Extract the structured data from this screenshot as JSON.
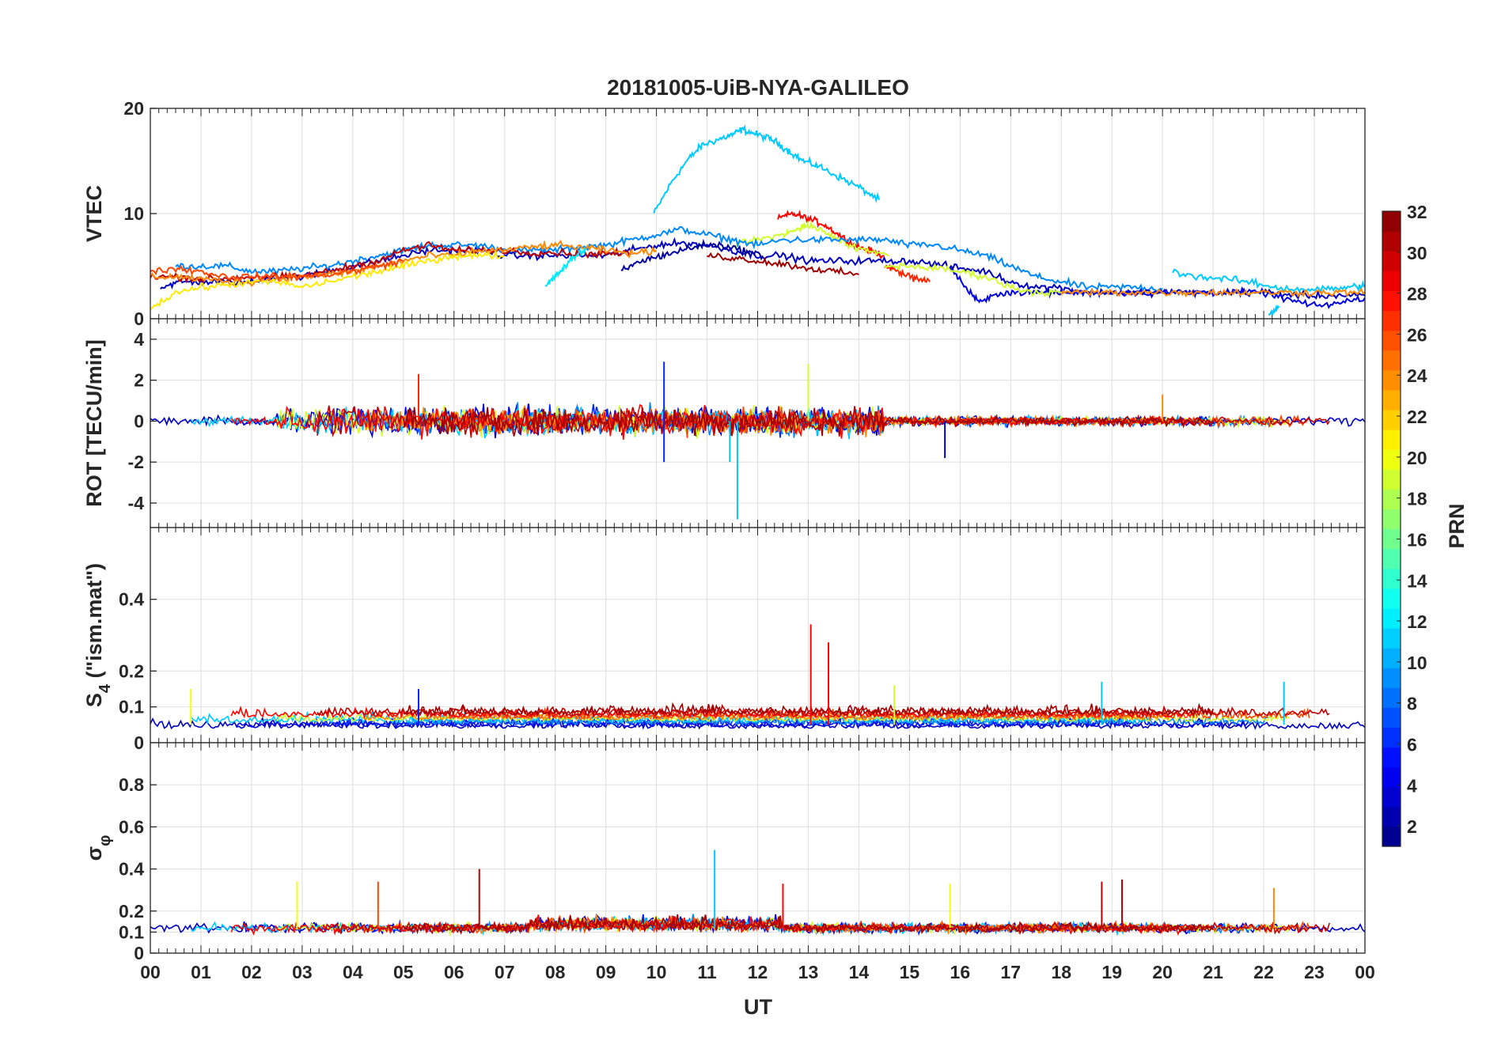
{
  "chart_data": {
    "type": "line",
    "title": "20181005-UiB-NYA-GALILEO",
    "xlabel": "UT",
    "x_range": [
      0,
      24
    ],
    "x_tick_labels": [
      "00",
      "01",
      "02",
      "03",
      "04",
      "05",
      "06",
      "07",
      "08",
      "09",
      "10",
      "11",
      "12",
      "13",
      "14",
      "15",
      "16",
      "17",
      "18",
      "19",
      "20",
      "21",
      "22",
      "23",
      "00"
    ],
    "grid": true,
    "colorbar": {
      "label": "PRN",
      "range": [
        1,
        32
      ],
      "ticks": [
        "2",
        "4",
        "6",
        "8",
        "10",
        "12",
        "14",
        "16",
        "18",
        "20",
        "22",
        "24",
        "26",
        "28",
        "30",
        "32"
      ],
      "colormap": "jet",
      "location": "right"
    },
    "panels": [
      {
        "name": "vtec",
        "ylabel": "VTEC",
        "ylim": [
          0,
          20
        ],
        "yticks": [
          "0",
          "10",
          "20"
        ],
        "series": [
          {
            "prn": 11,
            "x": [
              9.95,
              10.3,
              10.6,
              10.9,
              11.2,
              11.5,
              11.7,
              12.0,
              12.3,
              12.6,
              12.9,
              13.2,
              13.6,
              14.0,
              14.4
            ],
            "y": [
              10,
              13,
              15,
              16.5,
              17,
              17.5,
              18,
              17.5,
              17,
              16,
              15,
              14.5,
              13.5,
              12.5,
              11.3
            ]
          },
          {
            "prn": 28,
            "x": [
              12.4,
              12.7,
              13.0,
              13.3,
              13.6,
              13.9,
              14.2,
              14.5
            ],
            "y": [
              9.5,
              10,
              9.5,
              9,
              8,
              7,
              6.5,
              6
            ]
          },
          {
            "prn": 19,
            "x": [
              11.5,
              12.0,
              12.5,
              12.8,
              13.0,
              13.4,
              13.8,
              14.2,
              14.6
            ],
            "y": [
              7,
              7.5,
              8,
              8.5,
              9,
              8,
              7,
              6.5,
              6
            ]
          },
          {
            "prn": 9,
            "x": [
              0.5,
              1.0,
              1.5,
              2.0,
              2.5,
              3.0,
              3.5,
              4.0,
              4.5,
              5.0,
              5.5,
              6.0,
              6.5,
              7.0,
              7.5,
              8.0,
              8.5,
              9.0,
              9.5,
              10.0,
              10.5,
              11.0,
              11.5,
              12.0,
              12.5,
              13.0,
              13.5,
              14.0,
              14.5,
              15.0,
              15.5,
              16.0,
              16.5,
              17.0,
              17.5,
              18.0,
              18.5,
              19.0,
              19.5,
              20.0
            ],
            "y": [
              5,
              5,
              5,
              4.5,
              4.5,
              4.8,
              5,
              5.5,
              6,
              6.5,
              7,
              7,
              7,
              6.5,
              6.5,
              6.5,
              6.8,
              7,
              7.5,
              8,
              8.5,
              8,
              7.5,
              7,
              7.5,
              7.5,
              7.5,
              7.5,
              7.5,
              7,
              7,
              6.5,
              6,
              5,
              4,
              3.5,
              3,
              3,
              3,
              2.8
            ]
          },
          {
            "prn": 3,
            "x": [
              0.2,
              0.6,
              1.0,
              1.5,
              2.0,
              2.5,
              3.0,
              3.5,
              4.0,
              4.5,
              5.0,
              5.5,
              6.0,
              6.5,
              7.0,
              7.5,
              8.0,
              8.5,
              9.0,
              9.5,
              10.0,
              10.5,
              11.0,
              11.5,
              12.0,
              12.5,
              13.0,
              13.5,
              14.0,
              14.5,
              15.0,
              15.5,
              16.0,
              16.5,
              17.0,
              17.5,
              18.0,
              18.5,
              19.0,
              19.5,
              20.0,
              20.5,
              21.0,
              21.5,
              22.0,
              22.5,
              23.0,
              23.5,
              24.0
            ],
            "y": [
              3,
              3.5,
              3.5,
              3.5,
              3.5,
              4,
              4,
              4.5,
              5,
              5.5,
              6,
              6.5,
              6.5,
              6.5,
              6,
              6,
              6,
              6,
              6,
              6.5,
              7,
              7.2,
              7,
              6.5,
              6,
              6,
              5.5,
              5.5,
              5.5,
              5.5,
              5.5,
              5.2,
              4.8,
              4.5,
              3.5,
              3,
              3,
              2.5,
              2.5,
              2.5,
              2.5,
              2.5,
              2.5,
              2.5,
              2.5,
              2.3,
              2.2,
              2.2,
              2.2
            ]
          },
          {
            "prn": 2,
            "x": [
              9.3,
              9.7,
              10.1,
              10.5,
              10.9,
              11.3,
              11.7,
              12.1
            ],
            "y": [
              4.5,
              5.5,
              6,
              6.5,
              7,
              7,
              6.5,
              6
            ]
          },
          {
            "prn": 4,
            "x": [
              15.8,
              16.1,
              16.4,
              16.8,
              17.2,
              17.6,
              18.0,
              18.5,
              19.0,
              19.5,
              20.0,
              20.5,
              21.0,
              21.5,
              22.0,
              22.5,
              23.0,
              23.5,
              24.0
            ],
            "y": [
              5,
              3,
              1.5,
              2.5,
              2.5,
              2.5,
              2.5,
              2.5,
              2.5,
              2.5,
              2.5,
              2.5,
              2.5,
              2.5,
              2.5,
              1.8,
              1.2,
              1.5,
              2.0
            ]
          },
          {
            "prn": 30,
            "x": [
              0.0,
              0.5,
              1.0,
              1.5,
              2.0,
              2.5,
              3.0,
              3.5,
              4.0,
              4.5,
              5.0,
              5.5,
              6.0,
              6.5,
              7.0,
              7.5,
              8.0,
              8.5,
              9.0,
              9.5
            ],
            "y": [
              4,
              4,
              3.8,
              3.8,
              4,
              4,
              4,
              4.5,
              5,
              5.5,
              6.5,
              7,
              6.5,
              6.5,
              6.5,
              6.3,
              6.3,
              6.2,
              6.2,
              6.2
            ]
          },
          {
            "prn": 31,
            "x": [
              11.0,
              11.5,
              12.0,
              12.5,
              13.0,
              13.5,
              14.0
            ],
            "y": [
              6,
              5.8,
              5.5,
              5.2,
              4.8,
              4.5,
              4.2
            ]
          },
          {
            "prn": 24,
            "x": [
              0.0,
              0.5,
              1.0,
              1.5,
              2.0,
              2.5,
              3.0,
              3.5,
              4.0,
              4.5,
              5.0,
              5.5,
              6.0,
              6.5,
              7.0,
              7.5,
              8.0,
              8.5,
              9.0,
              9.5,
              10.0
            ],
            "y": [
              4,
              4,
              3.8,
              3.5,
              3.5,
              3.8,
              4,
              4.2,
              4.5,
              5,
              5.5,
              6,
              6,
              6.5,
              6.5,
              6.8,
              7,
              6.8,
              6.5,
              6.2,
              6.5
            ]
          },
          {
            "prn": 21,
            "x": [
              0.0,
              0.5,
              1.0,
              1.5,
              2.0,
              2.5,
              3.0,
              3.5,
              4.0,
              4.5,
              5.0,
              5.5,
              6.0,
              6.5,
              7.0
            ],
            "y": [
              1,
              2.5,
              3,
              3.2,
              3.5,
              3.5,
              3,
              3.5,
              4,
              4.5,
              5,
              5.5,
              6,
              6,
              6
            ]
          },
          {
            "prn": 26,
            "x": [
              0.0,
              0.5,
              1.0,
              1.5,
              2.0,
              2.5,
              3.0,
              3.5,
              4.0,
              4.5,
              5.0
            ],
            "y": [
              4.5,
              4.8,
              4.5,
              4,
              4,
              4,
              4,
              4.2,
              4.5,
              5,
              5.5
            ]
          },
          {
            "prn": 27,
            "x": [
              14.5,
              14.8,
              15.1,
              15.4
            ],
            "y": [
              5,
              4.5,
              3.8,
              3.5
            ]
          },
          {
            "prn": 19,
            "x": [
              14.5,
              15.0,
              15.5,
              16.0,
              16.5,
              17.0,
              17.5,
              18.0
            ],
            "y": [
              5,
              5,
              4.8,
              4.5,
              4,
              3,
              2.5,
              2.5
            ]
          },
          {
            "prn": 12,
            "x": [
              7.8,
              8.0,
              8.2,
              8.4,
              8.6
            ],
            "y": [
              3,
              4,
              5,
              6,
              6.5
            ]
          },
          {
            "prn": 11,
            "x": [
              20.2,
              20.7,
              21.2,
              21.7,
              22.2,
              22.7,
              23.2,
              23.7,
              24.0
            ],
            "y": [
              4.5,
              4,
              3.8,
              3.5,
              3,
              2.8,
              2.8,
              3,
              3.2
            ]
          },
          {
            "prn": 11,
            "x": [
              22.1,
              22.3
            ],
            "y": [
              0.2,
              1.2
            ]
          },
          {
            "prn": 24,
            "x": [
              18.0,
              18.5,
              19.0,
              19.5,
              20.0,
              20.5,
              21.0,
              21.5,
              22.0,
              22.5,
              23.0,
              23.5,
              24.0
            ],
            "y": [
              2.5,
              2.5,
              2.5,
              2.5,
              2.5,
              2.5,
              2.5,
              2.5,
              2.5,
              2.5,
              2.5,
              2.5,
              2.5
            ]
          }
        ]
      },
      {
        "name": "rot",
        "ylabel": "ROT [TECU/min]",
        "ylim": [
          -5.2,
          5
        ],
        "yticks": [
          "-4",
          "-2",
          "0",
          "2",
          "4"
        ]
      },
      {
        "name": "s4",
        "ylabel": "S4 (\"ism.mat\")",
        "ylabel_main": "S",
        "ylabel_sub": "4",
        "ylabel_tail": " (\"ism.mat\")",
        "ylim": [
          0,
          0.6
        ],
        "yticks": [
          "0",
          "0.1",
          "0.2",
          "0.4"
        ]
      },
      {
        "name": "sigma_phi",
        "ylabel": "σφ",
        "ylabel_main": "σ",
        "ylabel_sub": "φ",
        "ylim": [
          0,
          1
        ],
        "yticks": [
          "0",
          "0.1",
          "0.2",
          "0.4",
          "0.6",
          "0.8"
        ]
      }
    ],
    "spikes": {
      "rot": [
        {
          "prn": 11,
          "x": 11.6,
          "y": -4.8
        },
        {
          "prn": 6,
          "x": 10.15,
          "y": 2.9
        },
        {
          "prn": 19,
          "x": 13.0,
          "y": 2.8
        },
        {
          "prn": 6,
          "x": 10.15,
          "y": -2.0
        },
        {
          "prn": 11,
          "x": 11.45,
          "y": -2.0
        },
        {
          "prn": 3,
          "x": 15.7,
          "y": -1.8
        },
        {
          "prn": 24,
          "x": 20.0,
          "y": 1.3
        },
        {
          "prn": 27,
          "x": 5.3,
          "y": 2.3
        }
      ],
      "s4": [
        {
          "prn": 28,
          "x": 13.05,
          "y": 0.33
        },
        {
          "prn": 28,
          "x": 13.4,
          "y": 0.28
        },
        {
          "prn": 11,
          "x": 22.4,
          "y": 0.17
        },
        {
          "prn": 11,
          "x": 18.8,
          "y": 0.17
        },
        {
          "prn": 20,
          "x": 0.8,
          "y": 0.15
        },
        {
          "prn": 19,
          "x": 14.7,
          "y": 0.16
        },
        {
          "prn": 6,
          "x": 5.3,
          "y": 0.15
        }
      ],
      "sigma_phi": [
        {
          "prn": 11,
          "x": 11.15,
          "y": 0.49
        },
        {
          "prn": 30,
          "x": 6.5,
          "y": 0.4
        },
        {
          "prn": 20,
          "x": 2.9,
          "y": 0.34
        },
        {
          "prn": 26,
          "x": 4.5,
          "y": 0.34
        },
        {
          "prn": 20,
          "x": 15.8,
          "y": 0.33
        },
        {
          "prn": 30,
          "x": 19.2,
          "y": 0.35
        },
        {
          "prn": 30,
          "x": 18.8,
          "y": 0.34
        },
        {
          "prn": 28,
          "x": 12.5,
          "y": 0.33
        },
        {
          "prn": 24,
          "x": 22.2,
          "y": 0.31
        }
      ]
    }
  }
}
